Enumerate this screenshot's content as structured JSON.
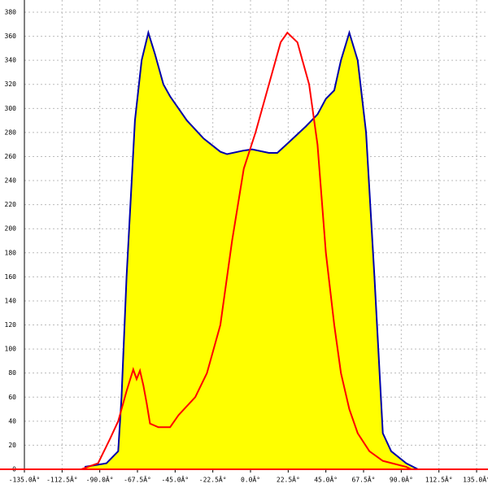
{
  "chart_data": {
    "type": "area",
    "xlim": [
      -135,
      135
    ],
    "ylim": [
      0,
      380
    ],
    "xticks": [
      {
        "value": -135,
        "label": "-135.0Â°"
      },
      {
        "value": -112.5,
        "label": "-112.5Â°"
      },
      {
        "value": -90,
        "label": "-90.0Â°"
      },
      {
        "value": -67.5,
        "label": "-67.5Â°"
      },
      {
        "value": -45,
        "label": "-45.0Â°"
      },
      {
        "value": -22.5,
        "label": "-22.5Â°"
      },
      {
        "value": 0,
        "label": "0.0Â°"
      },
      {
        "value": 22.5,
        "label": "22.5Â°"
      },
      {
        "value": 45,
        "label": "45.0Â°"
      },
      {
        "value": 67.5,
        "label": "67.5Â°"
      },
      {
        "value": 90,
        "label": "90.0Â°"
      },
      {
        "value": 112.5,
        "label": "112.5Â°"
      },
      {
        "value": 135,
        "label": "135.0Â°"
      }
    ],
    "yticks": [
      0,
      20,
      40,
      60,
      80,
      100,
      120,
      140,
      160,
      180,
      200,
      220,
      240,
      260,
      280,
      300,
      320,
      340,
      360,
      380
    ],
    "grid": true,
    "series": [
      {
        "color": "#0000aa",
        "fill": "#ffff00",
        "x": [
          -99,
          -86,
          -79,
          -77,
          -74,
          -69,
          -65,
          -61,
          -57,
          -52,
          -48,
          -38,
          -28,
          -18,
          -14,
          -4,
          1,
          11,
          16,
          23,
          33,
          40,
          45,
          50,
          54,
          59,
          64,
          69,
          74,
          79,
          84,
          93,
          100
        ],
        "values": [
          2,
          5,
          15,
          60,
          160,
          290,
          340,
          363,
          345,
          320,
          310,
          290,
          275,
          264,
          262,
          265,
          266,
          263,
          263,
          272,
          285,
          295,
          308,
          315,
          340,
          363,
          340,
          280,
          160,
          30,
          15,
          5,
          0
        ]
      },
      {
        "color": "#ff0000",
        "x": [
          -101,
          -91,
          -84,
          -79,
          -74,
          -70,
          -68,
          -66,
          -64,
          -62,
          -60,
          -55,
          -48,
          -43,
          -33,
          -26,
          -18,
          -11,
          -4,
          3,
          11,
          18,
          22,
          28,
          35,
          40,
          45,
          50,
          54,
          59,
          64,
          71,
          79,
          93,
          96
        ],
        "values": [
          0,
          5,
          25,
          40,
          65,
          83,
          75,
          82,
          70,
          55,
          38,
          35,
          35,
          45,
          60,
          80,
          120,
          190,
          250,
          280,
          320,
          355,
          363,
          355,
          320,
          270,
          180,
          120,
          80,
          50,
          30,
          15,
          7,
          2,
          0
        ]
      }
    ]
  }
}
